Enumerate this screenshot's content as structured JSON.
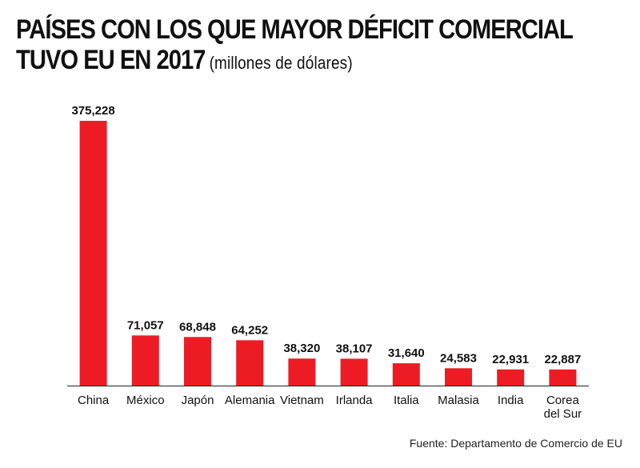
{
  "chart_data": {
    "type": "bar",
    "title_line1": "PAÍSES CON LOS QUE MAYOR DÉFICIT COMERCIAL",
    "title_line2": "TUVO EU EN 2017",
    "subtitle": "(millones de dólares)",
    "categories": [
      "China",
      "México",
      "Japón",
      "Alemania",
      "Vietnam",
      "Irlanda",
      "Italia",
      "Malasia",
      "India",
      "Corea del Sur"
    ],
    "category_lines": [
      [
        "China"
      ],
      [
        "México"
      ],
      [
        "Japón"
      ],
      [
        "Alemania"
      ],
      [
        "Vietnam"
      ],
      [
        "Irlanda"
      ],
      [
        "Italia"
      ],
      [
        "Malasia"
      ],
      [
        "India"
      ],
      [
        "Corea",
        "del Sur"
      ]
    ],
    "values": [
      375228,
      71057,
      68848,
      64252,
      38320,
      38107,
      31640,
      24583,
      22931,
      22887
    ],
    "value_labels": [
      "375,228",
      "71,057",
      "68,848",
      "64,252",
      "38,320",
      "38,107",
      "31,640",
      "24,583",
      "22,931",
      "22,887"
    ],
    "ylim": [
      0,
      375228
    ],
    "bar_color": "#ed1c24",
    "grid": false,
    "source": "Fuente: Departamento de Comercio de EU"
  }
}
